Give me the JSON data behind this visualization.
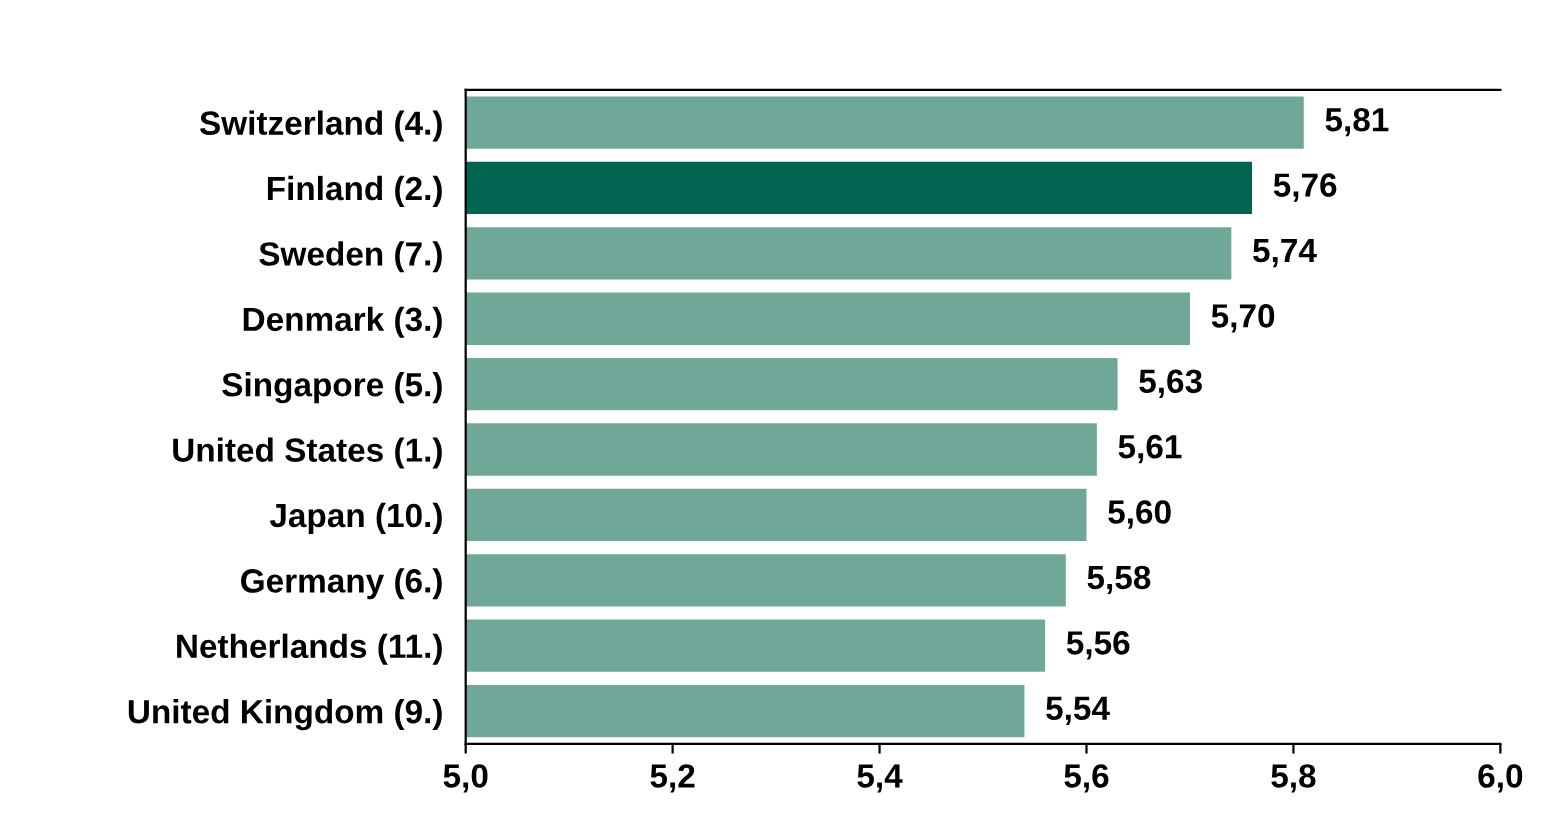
{
  "chart_data": {
    "type": "bar",
    "orientation": "horizontal",
    "categories": [
      "Switzerland (4.)",
      "Finland (2.)",
      "Sweden (7.)",
      "Denmark (3.)",
      "Singapore (5.)",
      "United States (1.)",
      "Japan (10.)",
      "Germany (6.)",
      "Netherlands (11.)",
      "United Kingdom (9.)"
    ],
    "values": [
      5.81,
      5.76,
      5.74,
      5.7,
      5.63,
      5.61,
      5.6,
      5.58,
      5.56,
      5.54
    ],
    "value_labels": [
      "5,81",
      "5,76",
      "5,74",
      "5,70",
      "5,63",
      "5,61",
      "5,60",
      "5,58",
      "5,56",
      "5,54"
    ],
    "colors": [
      "#6fa898",
      "#006450",
      "#6fa898",
      "#6fa898",
      "#6fa898",
      "#6fa898",
      "#6fa898",
      "#6fa898",
      "#6fa898",
      "#6fa898"
    ],
    "xlim": [
      5.0,
      6.0
    ],
    "xticks": [
      {
        "value": 5.0,
        "label": "5,0"
      },
      {
        "value": 5.2,
        "label": "5,2"
      },
      {
        "value": 5.4,
        "label": "5,4"
      },
      {
        "value": 5.6,
        "label": "5,6"
      },
      {
        "value": 5.8,
        "label": "5,8"
      },
      {
        "value": 6.0,
        "label": "6,0"
      }
    ],
    "grid": false,
    "legend": false
  }
}
